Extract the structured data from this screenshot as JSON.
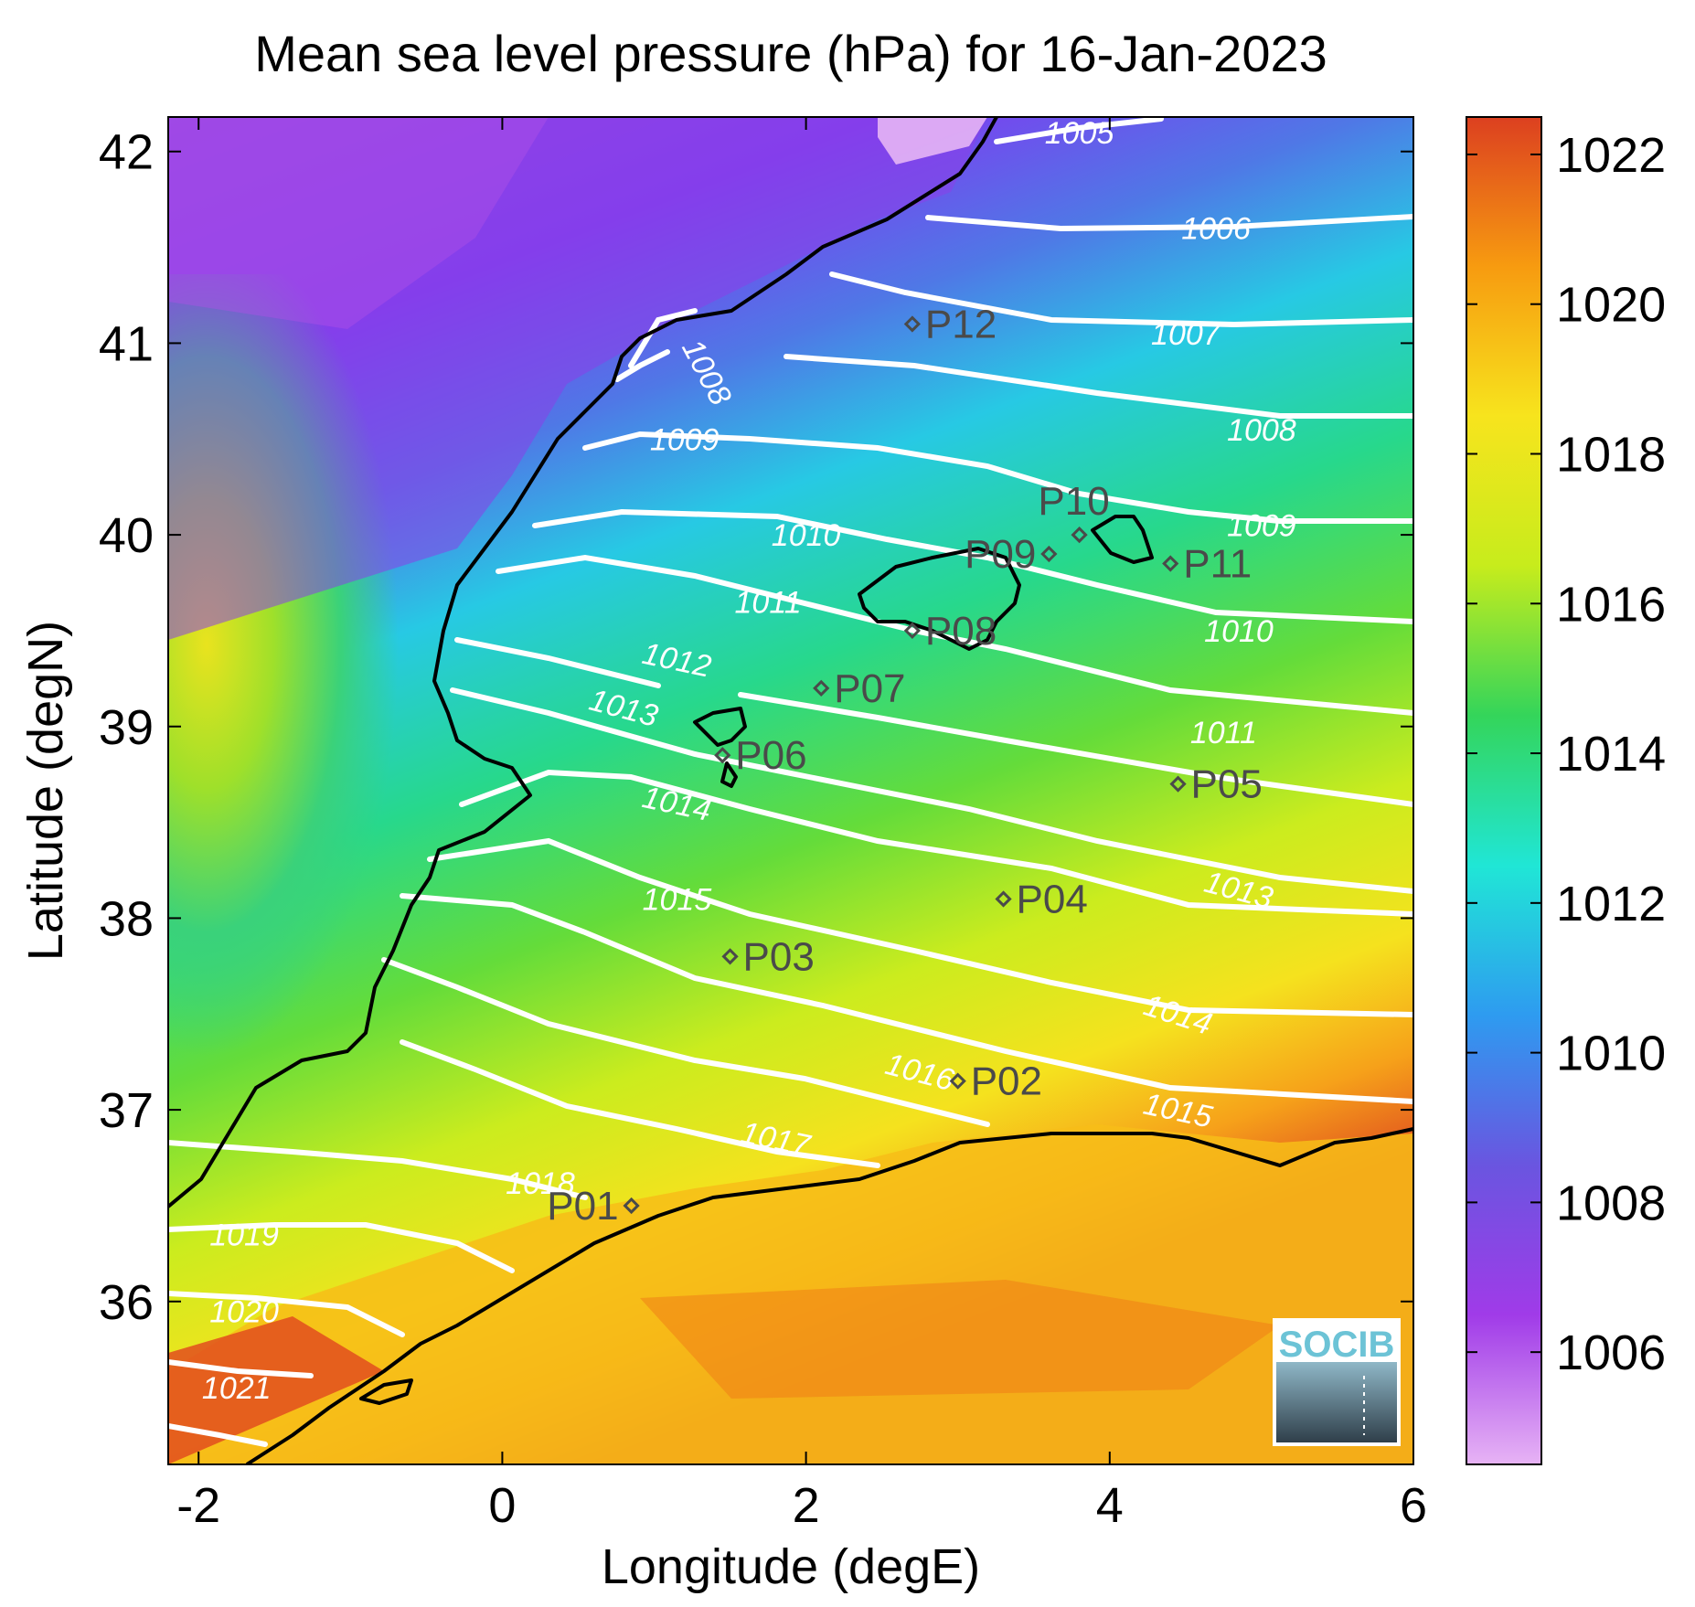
{
  "title": "Mean sea level pressure (hPa) for 16-Jan-2023",
  "xlabel": "Longitude (degE)",
  "ylabel": "Latitude (degN)",
  "x_ticks": [
    {
      "value": -2,
      "label": "-2"
    },
    {
      "value": 0,
      "label": "0"
    },
    {
      "value": 2,
      "label": "2"
    },
    {
      "value": 4,
      "label": "4"
    },
    {
      "value": 6,
      "label": "6"
    }
  ],
  "y_ticks": [
    {
      "value": 36,
      "label": "36"
    },
    {
      "value": 37,
      "label": "37"
    },
    {
      "value": 38,
      "label": "38"
    },
    {
      "value": 39,
      "label": "39"
    },
    {
      "value": 40,
      "label": "40"
    },
    {
      "value": 41,
      "label": "41"
    },
    {
      "value": 42,
      "label": "42"
    }
  ],
  "colorbar": {
    "range": [
      1004.5,
      1022.5
    ],
    "ticks": [
      {
        "value": 1006,
        "label": "1006"
      },
      {
        "value": 1008,
        "label": "1008"
      },
      {
        "value": 1010,
        "label": "1010"
      },
      {
        "value": 1012,
        "label": "1012"
      },
      {
        "value": 1014,
        "label": "1014"
      },
      {
        "value": 1016,
        "label": "1016"
      },
      {
        "value": 1018,
        "label": "1018"
      },
      {
        "value": 1020,
        "label": "1020"
      },
      {
        "value": 1022,
        "label": "1022"
      }
    ],
    "colors": [
      "#e7b3f5",
      "#a03be8",
      "#6a55e0",
      "#2e9bf0",
      "#20e6d6",
      "#34d55a",
      "#c7ec1c",
      "#f7e41d",
      "#f79b10",
      "#dc4020"
    ]
  },
  "contour_labels": [
    {
      "text": "1005",
      "lon": 3.8,
      "lat": 42.1
    },
    {
      "text": "1006",
      "lon": 4.7,
      "lat": 41.6
    },
    {
      "text": "1007",
      "lon": 4.5,
      "lat": 41.05
    },
    {
      "text": "1008",
      "lon": 1.35,
      "lat": 40.85,
      "rotate": 62
    },
    {
      "text": "1008",
      "lon": 5.0,
      "lat": 40.55
    },
    {
      "text": "1009",
      "lon": 1.2,
      "lat": 40.5
    },
    {
      "text": "1009",
      "lon": 5.0,
      "lat": 40.05
    },
    {
      "text": "1010",
      "lon": 2.0,
      "lat": 40.0
    },
    {
      "text": "1010",
      "lon": 4.85,
      "lat": 39.5
    },
    {
      "text": "1011",
      "lon": 1.75,
      "lat": 39.65
    },
    {
      "text": "1011",
      "lon": 4.75,
      "lat": 38.97
    },
    {
      "text": "1012",
      "lon": 1.15,
      "lat": 39.35,
      "rotate": 12
    },
    {
      "text": "1013",
      "lon": 0.8,
      "lat": 39.1,
      "rotate": 15
    },
    {
      "text": "1013",
      "lon": 4.85,
      "lat": 38.15,
      "rotate": 15
    },
    {
      "text": "1014",
      "lon": 1.15,
      "lat": 38.6,
      "rotate": 12
    },
    {
      "text": "1014",
      "lon": 4.45,
      "lat": 37.5,
      "rotate": 18
    },
    {
      "text": "1015",
      "lon": 1.15,
      "lat": 38.1
    },
    {
      "text": "1015",
      "lon": 4.45,
      "lat": 37.0,
      "rotate": 12
    },
    {
      "text": "1016",
      "lon": 2.75,
      "lat": 37.2,
      "rotate": 15
    },
    {
      "text": "1017",
      "lon": 1.8,
      "lat": 36.85,
      "rotate": 12
    },
    {
      "text": "1018",
      "lon": 0.25,
      "lat": 36.62
    },
    {
      "text": "1019",
      "lon": -1.7,
      "lat": 36.35
    },
    {
      "text": "1020",
      "lon": -1.7,
      "lat": 35.95
    },
    {
      "text": "1021",
      "lon": -1.75,
      "lat": 35.55
    }
  ],
  "stations": [
    {
      "name": "P01",
      "lon": 0.85,
      "lat": 36.5,
      "side": "left"
    },
    {
      "name": "P02",
      "lon": 3.0,
      "lat": 37.15,
      "side": "right"
    },
    {
      "name": "P03",
      "lon": 1.5,
      "lat": 37.8,
      "side": "right"
    },
    {
      "name": "P04",
      "lon": 3.3,
      "lat": 38.1,
      "side": "right"
    },
    {
      "name": "P05",
      "lon": 4.45,
      "lat": 38.7,
      "side": "right"
    },
    {
      "name": "P06",
      "lon": 1.45,
      "lat": 38.85,
      "side": "right"
    },
    {
      "name": "P07",
      "lon": 2.1,
      "lat": 39.2,
      "side": "right"
    },
    {
      "name": "P08",
      "lon": 2.7,
      "lat": 39.5,
      "side": "right"
    },
    {
      "name": "P09",
      "lon": 3.6,
      "lat": 39.9,
      "side": "left"
    },
    {
      "name": "P10",
      "lon": 3.8,
      "lat": 40.0,
      "side": "above"
    },
    {
      "name": "P11",
      "lon": 4.4,
      "lat": 39.85,
      "side": "right"
    },
    {
      "name": "P12",
      "lon": 2.7,
      "lat": 41.1,
      "side": "right"
    }
  ],
  "logo": {
    "text": "SOCIB"
  }
}
